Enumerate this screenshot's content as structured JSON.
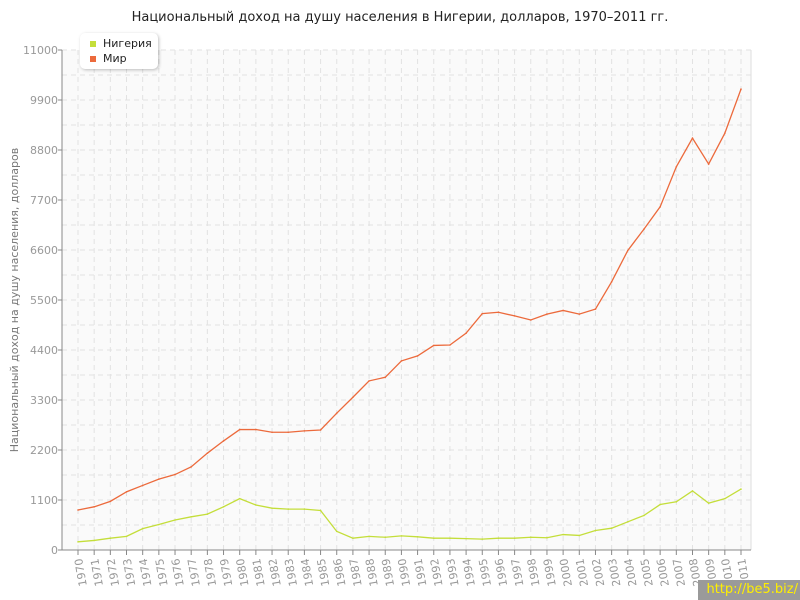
{
  "chart_data": {
    "type": "line",
    "title": "Национальный доход на душу населения в Нигерии, долларов, 1970–2011 гг.",
    "xlabel": "",
    "ylabel": "Национальный доход на душу населения, долларов",
    "ylim": [
      0,
      11000
    ],
    "yticks": [
      "0",
      "1100",
      "2200",
      "3300",
      "4400",
      "5500",
      "6600",
      "7700",
      "8800",
      "9900",
      "11000"
    ],
    "grid": true,
    "legend_position": "top-left",
    "x": [
      "1970",
      "1971",
      "1972",
      "1973",
      "1974",
      "1975",
      "1976",
      "1977",
      "1978",
      "1979",
      "1980",
      "1981",
      "1982",
      "1983",
      "1984",
      "1985",
      "1986",
      "1987",
      "1988",
      "1989",
      "1990",
      "1991",
      "1992",
      "1993",
      "1994",
      "1995",
      "1996",
      "1997",
      "1998",
      "1999",
      "2000",
      "2001",
      "2002",
      "2003",
      "2004",
      "2005",
      "2006",
      "2007",
      "2008",
      "2009",
      "2010",
      "2011"
    ],
    "series": [
      {
        "name": "Нигерия",
        "color": "#c4de3a",
        "values": [
          180,
          210,
          260,
          300,
          470,
          560,
          660,
          730,
          790,
          950,
          1130,
          990,
          920,
          900,
          900,
          870,
          410,
          260,
          300,
          280,
          310,
          290,
          260,
          260,
          250,
          240,
          260,
          260,
          280,
          270,
          340,
          320,
          430,
          480,
          620,
          760,
          1000,
          1060,
          1300,
          1030,
          1130,
          1340
        ]
      },
      {
        "name": "Мир",
        "color": "#ec6a3c",
        "values": [
          880,
          950,
          1070,
          1280,
          1420,
          1560,
          1660,
          1830,
          2130,
          2400,
          2650,
          2650,
          2590,
          2590,
          2620,
          2640,
          3010,
          3360,
          3720,
          3800,
          4160,
          4270,
          4500,
          4510,
          4770,
          5200,
          5230,
          5150,
          5060,
          5190,
          5270,
          5190,
          5300,
          5900,
          6590,
          7060,
          7550,
          8430,
          9060,
          8490,
          9170,
          10140
        ]
      }
    ]
  },
  "watermark": "http://be5.biz/"
}
